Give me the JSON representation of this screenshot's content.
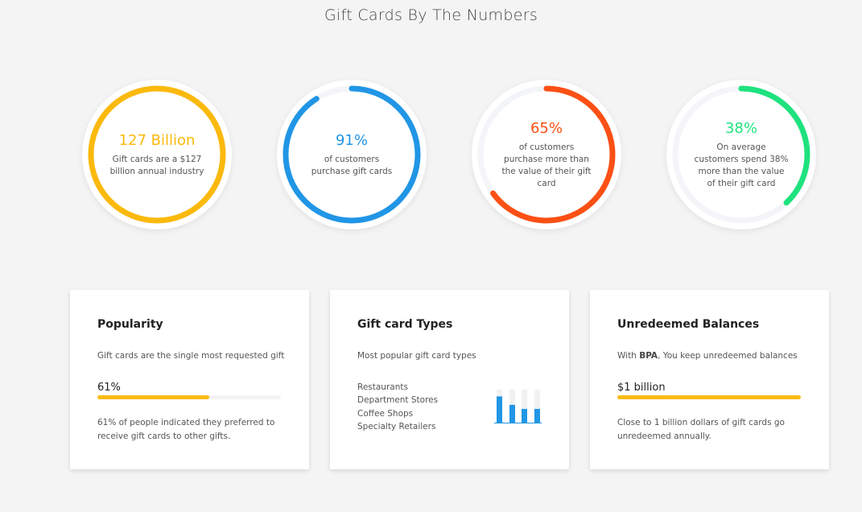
{
  "header": {
    "title": "Gift Cards By The Numbers"
  },
  "stats": [
    {
      "label": "127 Billion",
      "description": "Gift cards are a $127 billion annual industry",
      "color": "#fbb90c"
    },
    {
      "label": "91%",
      "value": 91,
      "description": "of customers purchase gift cards",
      "color": "#2196e6"
    },
    {
      "label": "65%",
      "value": 65,
      "description": "of customers purchase more than the value of their gift card",
      "color": "#fb5015"
    },
    {
      "label": "38%",
      "value": 38,
      "description": "On average customers spend 38% more than the value of their gift card",
      "color": "#1fe27e"
    }
  ],
  "cards": {
    "popularity": {
      "title": "Popularity",
      "subtitle": "Gift cards are the single most requested gift",
      "bar_label": "61%",
      "bar_value": 61,
      "note": "61% of people indicated they preferred to receive gift cards to other gifts.",
      "color": "#fbbb16"
    },
    "types": {
      "title": "Gift card Types",
      "subtitle": "Most popular gift card types",
      "items": [
        "Restaurants",
        "Department Stores",
        "Coffee Shops",
        "Specialty Retailers"
      ],
      "bars": [
        80,
        55,
        43,
        43
      ],
      "ylim": [
        0,
        100
      ],
      "color": "#2196e6"
    },
    "unredeemed": {
      "title": "Unredeemed Balances",
      "subtitle": [
        "With ",
        "BPA",
        ", You keep unredeemed balances"
      ],
      "bar_label": "$1 billion",
      "note": "Close to 1 billion dollars of gift cards go unredeemed annually.",
      "color": "#fbbb16"
    }
  }
}
